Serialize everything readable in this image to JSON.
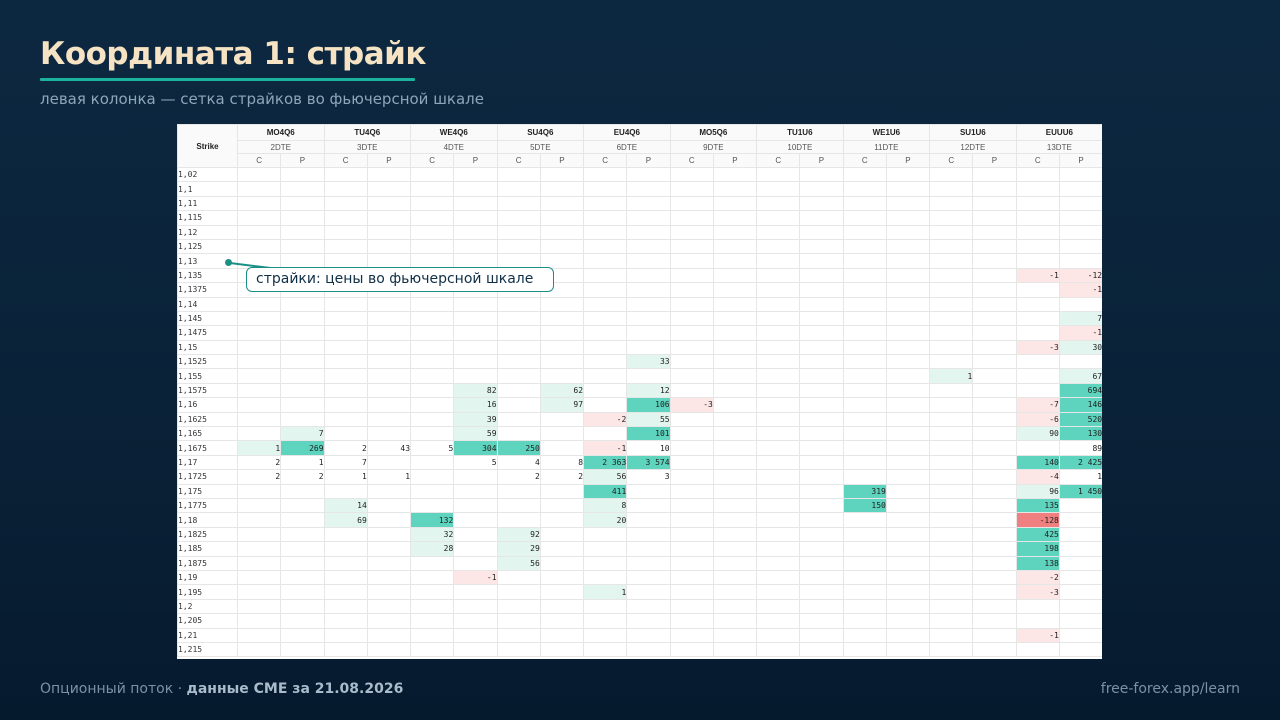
{
  "slide": {
    "title": "Координата 1: страйк",
    "subtitle": "левая колонка — сетка страйков во фьючерсной шкале"
  },
  "callout": {
    "text": "страйки: цены во фьючерсной шкале"
  },
  "footer": {
    "left_prefix": "Опционный поток · ",
    "left_bold": "данные CME за 21.08.2026",
    "right": "free-forex.app/learn"
  },
  "table": {
    "strike_header": "Strike",
    "call_label": "C",
    "put_label": "P",
    "expiries": [
      {
        "code": "MO4Q6",
        "dte": "2DTE"
      },
      {
        "code": "TU4Q6",
        "dte": "3DTE"
      },
      {
        "code": "WE4Q6",
        "dte": "4DTE"
      },
      {
        "code": "SU4Q6",
        "dte": "5DTE"
      },
      {
        "code": "EU4Q6",
        "dte": "6DTE"
      },
      {
        "code": "MO5Q6",
        "dte": "9DTE"
      },
      {
        "code": "TU1U6",
        "dte": "10DTE"
      },
      {
        "code": "WE1U6",
        "dte": "11DTE"
      },
      {
        "code": "SU1U6",
        "dte": "12DTE"
      },
      {
        "code": "EUUU6",
        "dte": "13DTE"
      }
    ],
    "rows": [
      {
        "strike": "1,02",
        "cells": []
      },
      {
        "strike": "1,1",
        "cells": []
      },
      {
        "strike": "1,11",
        "cells": []
      },
      {
        "strike": "1,115",
        "cells": []
      },
      {
        "strike": "1,12",
        "cells": []
      },
      {
        "strike": "1,125",
        "cells": []
      },
      {
        "strike": "1,13",
        "cells": []
      },
      {
        "strike": "1,135",
        "cells": [
          {
            "c": 18,
            "v": "-1",
            "s": "r1"
          },
          {
            "c": 19,
            "v": "-12",
            "s": "r1"
          }
        ]
      },
      {
        "strike": "1,1375",
        "cells": [
          {
            "c": 19,
            "v": "-1",
            "s": "r1"
          }
        ]
      },
      {
        "strike": "1,14",
        "cells": []
      },
      {
        "strike": "1,145",
        "cells": [
          {
            "c": 19,
            "v": "7",
            "s": "g1"
          }
        ]
      },
      {
        "strike": "1,1475",
        "cells": [
          {
            "c": 19,
            "v": "-1",
            "s": "r1"
          }
        ]
      },
      {
        "strike": "1,15",
        "cells": [
          {
            "c": 18,
            "v": "-3",
            "s": "r1"
          },
          {
            "c": 19,
            "v": "30",
            "s": "g1"
          }
        ]
      },
      {
        "strike": "1,1525",
        "cells": [
          {
            "c": 9,
            "v": "33",
            "s": "g1"
          }
        ]
      },
      {
        "strike": "1,155",
        "cells": [
          {
            "c": 16,
            "v": "1",
            "s": "g1"
          },
          {
            "c": 19,
            "v": "67",
            "s": "g1"
          }
        ]
      },
      {
        "strike": "1,1575",
        "cells": [
          {
            "c": 5,
            "v": "82",
            "s": "g1"
          },
          {
            "c": 7,
            "v": "62",
            "s": "g1"
          },
          {
            "c": 9,
            "v": "12",
            "s": "g1"
          },
          {
            "c": 19,
            "v": "694",
            "s": "g3"
          }
        ]
      },
      {
        "strike": "1,16",
        "cells": [
          {
            "c": 5,
            "v": "16",
            "s": "g1"
          },
          {
            "c": 7,
            "v": "97",
            "s": "g1"
          },
          {
            "c": 9,
            "v": "106",
            "s": "g3"
          },
          {
            "c": 10,
            "v": "-3",
            "s": "r1"
          },
          {
            "c": 18,
            "v": "-7",
            "s": "r1"
          },
          {
            "c": 19,
            "v": "146",
            "s": "g3"
          }
        ]
      },
      {
        "strike": "1,1625",
        "cells": [
          {
            "c": 5,
            "v": "39",
            "s": "g1"
          },
          {
            "c": 8,
            "v": "-2",
            "s": "r1"
          },
          {
            "c": 9,
            "v": "55",
            "s": "g1"
          },
          {
            "c": 18,
            "v": "-6",
            "s": "r1"
          },
          {
            "c": 19,
            "v": "520",
            "s": "g3"
          }
        ]
      },
      {
        "strike": "1,165",
        "cells": [
          {
            "c": 1,
            "v": "7",
            "s": "g1"
          },
          {
            "c": 5,
            "v": "59",
            "s": "g1"
          },
          {
            "c": 9,
            "v": "101",
            "s": "g3"
          },
          {
            "c": 18,
            "v": "90",
            "s": "g1"
          },
          {
            "c": 19,
            "v": "130",
            "s": "g3"
          }
        ]
      },
      {
        "strike": "1,1675",
        "cells": [
          {
            "c": 0,
            "v": "1",
            "s": "g1"
          },
          {
            "c": 1,
            "v": "269",
            "s": "g3"
          },
          {
            "c": 2,
            "v": "2",
            "s": ""
          },
          {
            "c": 3,
            "v": "43",
            "s": ""
          },
          {
            "c": 4,
            "v": "5",
            "s": ""
          },
          {
            "c": 5,
            "v": "304",
            "s": "g3"
          },
          {
            "c": 6,
            "v": "250",
            "s": "g3"
          },
          {
            "c": 8,
            "v": "-1",
            "s": "r1"
          },
          {
            "c": 9,
            "v": "10",
            "s": ""
          },
          {
            "c": 19,
            "v": "89",
            "s": ""
          }
        ]
      },
      {
        "strike": "1,17",
        "cells": [
          {
            "c": 0,
            "v": "2",
            "s": ""
          },
          {
            "c": 1,
            "v": "1",
            "s": ""
          },
          {
            "c": 2,
            "v": "7",
            "s": ""
          },
          {
            "c": 5,
            "v": "5",
            "s": ""
          },
          {
            "c": 6,
            "v": "4",
            "s": ""
          },
          {
            "c": 7,
            "v": "8",
            "s": ""
          },
          {
            "c": 8,
            "v": "2 363",
            "s": "g3"
          },
          {
            "c": 9,
            "v": "3 574",
            "s": "g3"
          },
          {
            "c": 18,
            "v": "140",
            "s": "g3"
          },
          {
            "c": 19,
            "v": "2 425",
            "s": "g3"
          }
        ]
      },
      {
        "strike": "1,1725",
        "cells": [
          {
            "c": 0,
            "v": "2",
            "s": ""
          },
          {
            "c": 1,
            "v": "2",
            "s": ""
          },
          {
            "c": 2,
            "v": "1",
            "s": ""
          },
          {
            "c": 3,
            "v": "1",
            "s": ""
          },
          {
            "c": 6,
            "v": "2",
            "s": ""
          },
          {
            "c": 7,
            "v": "2",
            "s": ""
          },
          {
            "c": 8,
            "v": "56",
            "s": "g1"
          },
          {
            "c": 9,
            "v": "3",
            "s": ""
          },
          {
            "c": 18,
            "v": "-4",
            "s": "r1"
          },
          {
            "c": 19,
            "v": "1",
            "s": ""
          }
        ]
      },
      {
        "strike": "1,175",
        "cells": [
          {
            "c": 8,
            "v": "411",
            "s": "g3"
          },
          {
            "c": 14,
            "v": "319",
            "s": "g3"
          },
          {
            "c": 18,
            "v": "96",
            "s": "g1"
          },
          {
            "c": 19,
            "v": "1 450",
            "s": "g3"
          }
        ]
      },
      {
        "strike": "1,1775",
        "cells": [
          {
            "c": 2,
            "v": "14",
            "s": "g1"
          },
          {
            "c": 8,
            "v": "8",
            "s": "g1"
          },
          {
            "c": 14,
            "v": "150",
            "s": "g3"
          },
          {
            "c": 18,
            "v": "135",
            "s": "g3"
          }
        ]
      },
      {
        "strike": "1,18",
        "cells": [
          {
            "c": 2,
            "v": "69",
            "s": "g1"
          },
          {
            "c": 4,
            "v": "132",
            "s": "g3"
          },
          {
            "c": 8,
            "v": "20",
            "s": "g1"
          },
          {
            "c": 18,
            "v": "-128",
            "s": "r3"
          }
        ]
      },
      {
        "strike": "1,1825",
        "cells": [
          {
            "c": 4,
            "v": "32",
            "s": "g1"
          },
          {
            "c": 6,
            "v": "92",
            "s": "g1"
          },
          {
            "c": 18,
            "v": "425",
            "s": "g3"
          }
        ]
      },
      {
        "strike": "1,185",
        "cells": [
          {
            "c": 4,
            "v": "28",
            "s": "g1"
          },
          {
            "c": 6,
            "v": "29",
            "s": "g1"
          },
          {
            "c": 18,
            "v": "198",
            "s": "g3"
          }
        ]
      },
      {
        "strike": "1,1875",
        "cells": [
          {
            "c": 6,
            "v": "56",
            "s": "g1"
          },
          {
            "c": 18,
            "v": "138",
            "s": "g3"
          }
        ]
      },
      {
        "strike": "1,19",
        "cells": [
          {
            "c": 5,
            "v": "-1",
            "s": "r1"
          },
          {
            "c": 18,
            "v": "-2",
            "s": "r1"
          }
        ]
      },
      {
        "strike": "1,195",
        "cells": [
          {
            "c": 8,
            "v": "1",
            "s": "g1"
          },
          {
            "c": 18,
            "v": "-3",
            "s": "r1"
          }
        ]
      },
      {
        "strike": "1,2",
        "cells": []
      },
      {
        "strike": "1,205",
        "cells": []
      },
      {
        "strike": "1,21",
        "cells": [
          {
            "c": 18,
            "v": "-1",
            "s": "r1"
          }
        ]
      },
      {
        "strike": "1,215",
        "cells": []
      }
    ]
  }
}
